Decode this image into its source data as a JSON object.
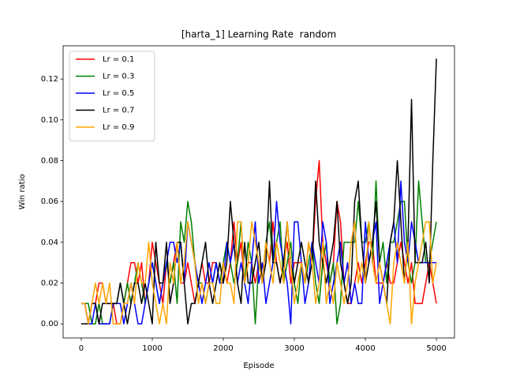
{
  "chart_data": {
    "type": "line",
    "title": "[harta_1] Learning Rate  random",
    "xlabel": "Episode",
    "ylabel": "Win ratio",
    "x": [
      0,
      50,
      100,
      150,
      200,
      250,
      300,
      350,
      400,
      450,
      500,
      550,
      600,
      650,
      700,
      750,
      800,
      850,
      900,
      950,
      1000,
      1050,
      1100,
      1150,
      1200,
      1250,
      1300,
      1350,
      1400,
      1450,
      1500,
      1550,
      1600,
      1650,
      1700,
      1750,
      1800,
      1850,
      1900,
      1950,
      2000,
      2050,
      2100,
      2150,
      2200,
      2250,
      2300,
      2350,
      2400,
      2450,
      2500,
      2550,
      2600,
      2650,
      2700,
      2750,
      2800,
      2850,
      2900,
      2950,
      3000,
      3050,
      3100,
      3150,
      3200,
      3250,
      3300,
      3350,
      3400,
      3450,
      3500,
      3550,
      3600,
      3650,
      3700,
      3750,
      3800,
      3850,
      3900,
      3950,
      4000,
      4050,
      4100,
      4150,
      4200,
      4250,
      4300,
      4350,
      4400,
      4450,
      4500,
      4550,
      4600,
      4650,
      4700,
      4750,
      4800,
      4850,
      4900,
      4950,
      5000
    ],
    "series": [
      {
        "name": "Lr = 0.1",
        "color": "#ff0000",
        "values": [
          0.01,
          0.01,
          0.0,
          0.01,
          0.01,
          0.02,
          0.02,
          0.01,
          0.01,
          0.01,
          0.0,
          0.0,
          0.01,
          0.02,
          0.03,
          0.03,
          0.02,
          0.03,
          0.01,
          0.02,
          0.04,
          0.03,
          0.02,
          0.01,
          0.03,
          0.02,
          0.03,
          0.04,
          0.02,
          0.02,
          0.03,
          0.02,
          0.01,
          0.02,
          0.03,
          0.02,
          0.02,
          0.03,
          0.03,
          0.02,
          0.03,
          0.02,
          0.03,
          0.05,
          0.03,
          0.04,
          0.02,
          0.03,
          0.03,
          0.02,
          0.03,
          0.02,
          0.04,
          0.03,
          0.05,
          0.03,
          0.02,
          0.03,
          0.04,
          0.02,
          0.03,
          0.03,
          0.03,
          0.02,
          0.04,
          0.03,
          0.06,
          0.08,
          0.04,
          0.03,
          0.02,
          0.03,
          0.06,
          0.05,
          0.02,
          0.01,
          0.01,
          0.02,
          0.03,
          0.02,
          0.03,
          0.04,
          0.04,
          0.02,
          0.02,
          0.02,
          0.03,
          0.02,
          0.02,
          0.03,
          0.04,
          0.03,
          0.02,
          0.03,
          0.01,
          0.01,
          0.01,
          0.02,
          0.03,
          0.02,
          0.01
        ]
      },
      {
        "name": "Lr = 0.3",
        "color": "#008000",
        "values": [
          0.01,
          0.01,
          0.01,
          0.0,
          0.0,
          0.01,
          0.0,
          0.0,
          0.0,
          0.01,
          0.01,
          0.02,
          0.01,
          0.02,
          0.01,
          0.02,
          0.03,
          0.02,
          0.01,
          0.02,
          0.03,
          0.02,
          0.01,
          0.02,
          0.03,
          0.02,
          0.03,
          0.01,
          0.05,
          0.04,
          0.06,
          0.05,
          0.03,
          0.02,
          0.02,
          0.01,
          0.02,
          0.02,
          0.03,
          0.02,
          0.03,
          0.04,
          0.03,
          0.02,
          0.03,
          0.05,
          0.02,
          0.04,
          0.03,
          0.0,
          0.03,
          0.02,
          0.04,
          0.05,
          0.03,
          0.04,
          0.05,
          0.02,
          0.03,
          0.04,
          0.02,
          0.01,
          0.03,
          0.02,
          0.03,
          0.04,
          0.02,
          0.01,
          0.03,
          0.04,
          0.02,
          0.03,
          0.0,
          0.01,
          0.04,
          0.04,
          0.04,
          0.04,
          0.06,
          0.04,
          0.04,
          0.05,
          0.03,
          0.07,
          0.03,
          0.04,
          0.02,
          0.04,
          0.04,
          0.05,
          0.06,
          0.06,
          0.03,
          0.02,
          0.03,
          0.07,
          0.05,
          0.03,
          0.03,
          0.04,
          0.05
        ]
      },
      {
        "name": "Lr = 0.5",
        "color": "#0000ff",
        "values": [
          0.01,
          0.01,
          0.0,
          0.0,
          0.01,
          0.0,
          0.0,
          0.0,
          0.0,
          0.01,
          0.01,
          0.01,
          0.0,
          0.01,
          0.02,
          0.01,
          0.0,
          0.0,
          0.01,
          0.02,
          0.03,
          0.02,
          0.01,
          0.02,
          0.03,
          0.04,
          0.04,
          0.03,
          0.04,
          0.02,
          0.05,
          0.04,
          0.03,
          0.02,
          0.01,
          0.02,
          0.03,
          0.02,
          0.03,
          0.02,
          0.02,
          0.04,
          0.03,
          0.04,
          0.02,
          0.03,
          0.02,
          0.01,
          0.03,
          0.05,
          0.02,
          0.03,
          0.01,
          0.02,
          0.03,
          0.06,
          0.04,
          0.03,
          0.02,
          0.0,
          0.05,
          0.05,
          0.03,
          0.01,
          0.02,
          0.04,
          0.03,
          0.02,
          0.05,
          0.04,
          0.01,
          0.02,
          0.03,
          0.04,
          0.02,
          0.03,
          0.01,
          0.02,
          0.01,
          0.01,
          0.05,
          0.03,
          0.04,
          0.05,
          0.01,
          0.02,
          0.03,
          0.04,
          0.05,
          0.03,
          0.07,
          0.04,
          0.03,
          0.05,
          0.04,
          0.03,
          0.03,
          0.03,
          0.03,
          0.03,
          0.03
        ]
      },
      {
        "name": "Lr = 0.7",
        "color": "#000000",
        "values": [
          0.0,
          0.0,
          0.0,
          0.01,
          0.01,
          0.0,
          0.01,
          0.01,
          0.01,
          0.01,
          0.01,
          0.02,
          0.01,
          0.0,
          0.01,
          0.02,
          0.02,
          0.01,
          0.02,
          0.01,
          0.0,
          0.04,
          0.02,
          0.02,
          0.04,
          0.01,
          0.02,
          0.04,
          0.04,
          0.02,
          0.0,
          0.01,
          0.01,
          0.02,
          0.03,
          0.04,
          0.02,
          0.01,
          0.02,
          0.03,
          0.02,
          0.03,
          0.06,
          0.04,
          0.02,
          0.01,
          0.04,
          0.02,
          0.02,
          0.03,
          0.04,
          0.02,
          0.03,
          0.07,
          0.03,
          0.03,
          0.02,
          0.03,
          0.05,
          0.03,
          0.02,
          0.03,
          0.04,
          0.03,
          0.02,
          0.03,
          0.07,
          0.04,
          0.03,
          0.02,
          0.03,
          0.04,
          0.06,
          0.03,
          0.02,
          0.01,
          0.02,
          0.06,
          0.07,
          0.04,
          0.02,
          0.03,
          0.04,
          0.06,
          0.03,
          0.02,
          0.01,
          0.04,
          0.05,
          0.08,
          0.05,
          0.02,
          0.04,
          0.11,
          0.03,
          0.03,
          0.03,
          0.04,
          0.02,
          0.08,
          0.13
        ]
      },
      {
        "name": "Lr = 0.9",
        "color": "#ffa500",
        "values": [
          0.01,
          0.01,
          0.0,
          0.01,
          0.02,
          0.01,
          0.02,
          0.01,
          0.02,
          0.0,
          0.0,
          0.0,
          0.01,
          0.01,
          0.02,
          0.01,
          0.03,
          0.02,
          0.02,
          0.04,
          0.02,
          0.01,
          0.0,
          0.01,
          0.0,
          0.03,
          0.02,
          0.04,
          0.02,
          0.03,
          0.05,
          0.04,
          0.03,
          0.01,
          0.02,
          0.01,
          0.02,
          0.02,
          0.01,
          0.01,
          0.03,
          0.02,
          0.02,
          0.01,
          0.05,
          0.05,
          0.02,
          0.03,
          0.05,
          0.04,
          0.03,
          0.02,
          0.04,
          0.03,
          0.02,
          0.04,
          0.03,
          0.02,
          0.05,
          0.03,
          0.01,
          0.02,
          0.03,
          0.02,
          0.04,
          0.03,
          0.01,
          0.02,
          0.04,
          0.01,
          0.02,
          0.01,
          0.03,
          0.02,
          0.01,
          0.02,
          0.04,
          0.05,
          0.02,
          0.03,
          0.02,
          0.05,
          0.03,
          0.02,
          0.03,
          0.02,
          0.01,
          0.0,
          0.03,
          0.04,
          0.03,
          0.02,
          0.04,
          0.0,
          0.02,
          0.03,
          0.04,
          0.05,
          0.05,
          0.02,
          0.03
        ]
      }
    ],
    "xlim": [
      -255,
      5255
    ],
    "ylim": [
      -0.0069,
      0.1363
    ],
    "xticks": [
      0,
      1000,
      2000,
      3000,
      4000,
      5000
    ],
    "yticks": [
      {
        "value": 0,
        "label": "0.00"
      },
      {
        "value": 0.02,
        "label": "0.02"
      },
      {
        "value": 0.04,
        "label": "0.04"
      },
      {
        "value": 0.06,
        "label": "0.06"
      },
      {
        "value": 0.08,
        "label": "0.08"
      },
      {
        "value": 0.1,
        "label": "0.10"
      },
      {
        "value": 0.12,
        "label": "0.12"
      }
    ],
    "legend": "upper left",
    "grid": false
  }
}
